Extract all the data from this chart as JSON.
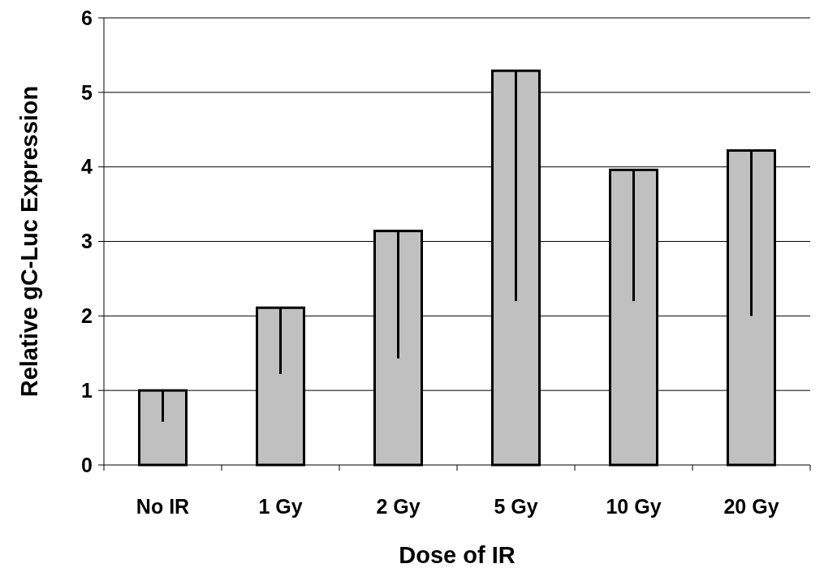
{
  "chart_data": {
    "type": "bar",
    "xlabel": "Dose of IR",
    "ylabel": "Relative gC-Luc Expression",
    "categories": [
      "No IR",
      "1 Gy",
      "2 Gy",
      "5 Gy",
      "10 Gy",
      "20 Gy"
    ],
    "values": [
      1.0,
      2.11,
      3.14,
      5.29,
      3.96,
      4.22
    ],
    "errors": [
      [
        0.58,
        1.0
      ],
      [
        1.22,
        2.11
      ],
      [
        1.43,
        3.14
      ],
      [
        2.2,
        5.29
      ],
      [
        2.2,
        3.96
      ],
      [
        2.0,
        4.22
      ]
    ],
    "color": "#c0c0c0",
    "ylim": [
      0,
      6
    ],
    "yticks": [
      0,
      1,
      2,
      3,
      4,
      5,
      6
    ],
    "grid": "y"
  }
}
